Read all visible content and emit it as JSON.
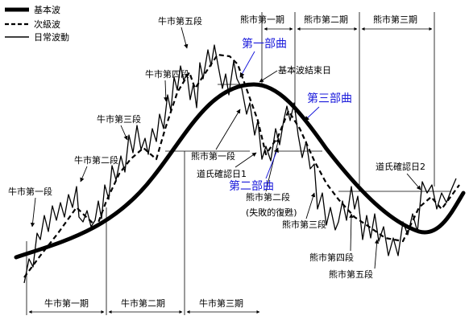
{
  "legend": {
    "basic_wave": "基本波",
    "secondary_wave": "次級波",
    "daily_wave": "日常波動"
  },
  "header_periods": [
    "熊市第一期",
    "熊市第二期",
    "熊市第三期"
  ],
  "bottom_periods": [
    "牛市第一期",
    "牛市第二期",
    "牛市第三期"
  ],
  "bull_segments": [
    "牛市第一段",
    "牛市第二段",
    "牛市第三段",
    "牛市第四段",
    "牛市第五段"
  ],
  "bear_segments": {
    "first": "熊市第一段",
    "second_line1": "熊市第二段",
    "second_line2": "(失敗的復甦)",
    "third": "熊市第三段",
    "fourth": "熊市第四段",
    "fifth": "熊市第五段"
  },
  "annotations": {
    "basic_wave_end": "基本波結束日",
    "dow_confirm_1": "道氏確認日1",
    "dow_confirm_2": "道氏確認日2"
  },
  "parts": {
    "part1": "第一部曲",
    "part2": "第二部曲",
    "part3": "第三部曲"
  },
  "colors": {
    "blue_label": "#1a1adb",
    "line": "#000000"
  }
}
